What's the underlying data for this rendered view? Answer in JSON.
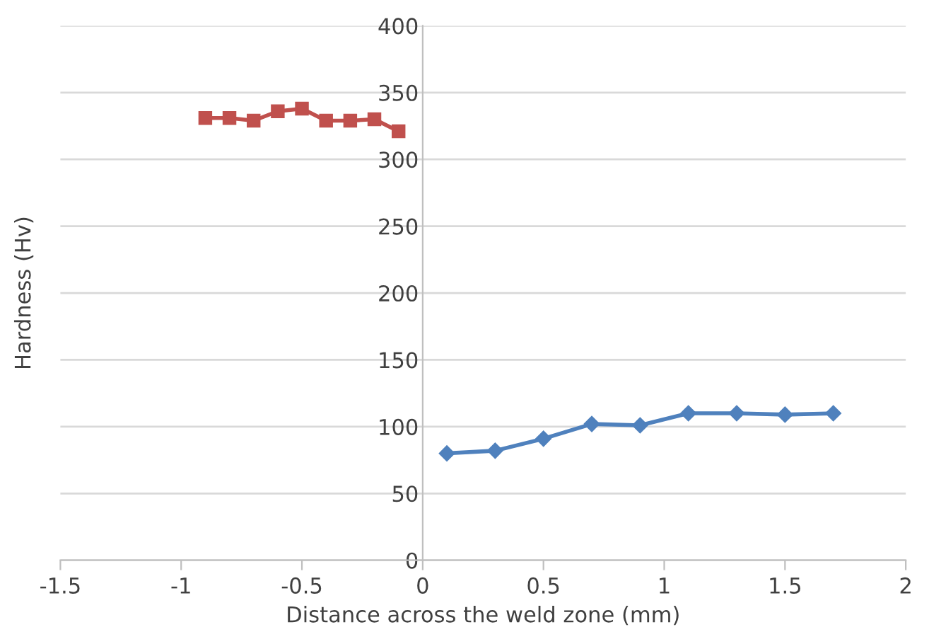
{
  "chart_data": {
    "type": "line",
    "xlabel": "Distance across the weld zone (mm)",
    "ylabel": "Hardness (Hv)",
    "xlim": [
      -1.5,
      2
    ],
    "xticks": [
      -1.5,
      -1,
      -0.5,
      0,
      0.5,
      1,
      1.5,
      2
    ],
    "ylim": [
      0,
      400
    ],
    "yticks": [
      0,
      50,
      100,
      150,
      200,
      250,
      300,
      350,
      400
    ],
    "grid": "y",
    "series": [
      {
        "color": "#c0504d",
        "marker": "square",
        "x": [
          -0.9,
          -0.8,
          -0.7,
          -0.6,
          -0.5,
          -0.4,
          -0.3,
          -0.2,
          -0.1
        ],
        "values": [
          331,
          331,
          329,
          336,
          338,
          329,
          329,
          330,
          321
        ]
      },
      {
        "color": "#4f81bd",
        "marker": "diamond",
        "x": [
          0.1,
          0.3,
          0.5,
          0.7,
          0.9,
          1.1,
          1.3,
          1.5,
          1.7
        ],
        "values": [
          80,
          82,
          91,
          102,
          101,
          110,
          110,
          109,
          110
        ]
      }
    ]
  }
}
